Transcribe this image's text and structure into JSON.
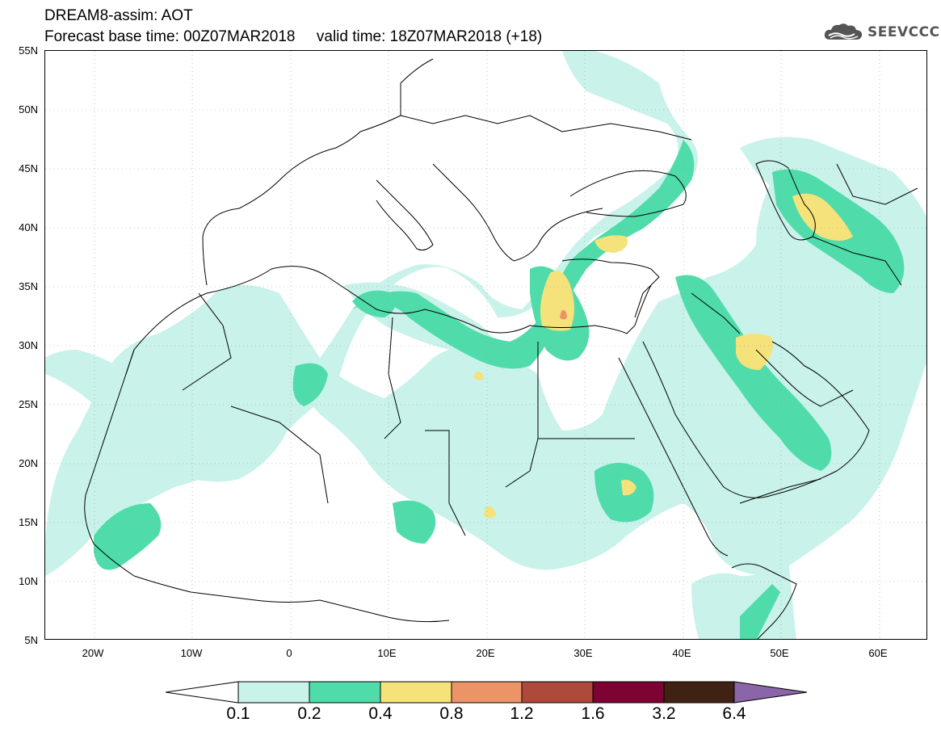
{
  "title": {
    "line1": "DREAM8-assim: AOT",
    "line2": "Forecast base time: 00Z07MAR2018     valid time: 18Z07MAR2018 (+18)"
  },
  "logo": {
    "text": "SEEVCCC",
    "icon": "cloud-icon"
  },
  "map": {
    "lon_range": [
      -25,
      65
    ],
    "lat_range": [
      5,
      55
    ],
    "lat_labels": [
      "55N",
      "50N",
      "45N",
      "40N",
      "35N",
      "30N",
      "25N",
      "20N",
      "15N",
      "10N",
      "5N"
    ],
    "lon_labels": [
      "20W",
      "10W",
      "0",
      "10E",
      "20E",
      "30E",
      "40E",
      "50E",
      "60E"
    ],
    "gridlines": "dotted"
  },
  "colorbar": {
    "labels": [
      "0.1",
      "0.2",
      "0.4",
      "0.8",
      "1.2",
      "1.6",
      "3.2",
      "6.4"
    ],
    "colors": {
      "under": "#ffffff",
      "c1": "#c8f2ea",
      "c2": "#4fdcaa",
      "c3": "#f6e27b",
      "c4": "#ec9468",
      "c5": "#ad4a3b",
      "c6": "#7c0334",
      "c7": "#3f2214",
      "over": "#8a66a8"
    }
  }
}
